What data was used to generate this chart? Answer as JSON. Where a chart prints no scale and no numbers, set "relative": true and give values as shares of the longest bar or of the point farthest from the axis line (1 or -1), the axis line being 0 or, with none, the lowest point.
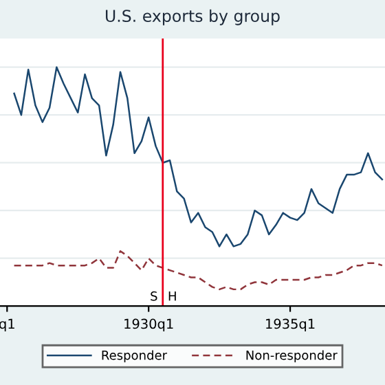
{
  "chart_data": {
    "type": "line",
    "title": "U.S. exports by group",
    "relative": true,
    "categories": [
      "q1",
      null,
      null,
      null,
      null,
      null,
      null,
      null,
      null,
      null,
      null,
      null,
      null,
      null,
      null,
      null,
      null,
      null,
      null,
      null,
      "1930q1",
      null,
      null,
      null,
      null,
      null,
      null,
      null,
      null,
      null,
      null,
      null,
      null,
      null,
      null,
      null,
      null,
      null,
      null,
      null,
      "1935q1",
      null,
      null,
      null,
      null,
      null,
      null,
      null,
      null,
      null,
      null,
      null,
      null,
      null
    ],
    "series": [
      {
        "name": "Responder",
        "color": "#1a476f",
        "line_style": "solid",
        "values": [
          null,
          0.89,
          0.8,
          0.99,
          0.84,
          0.77,
          0.83,
          1.0,
          0.93,
          0.87,
          0.81,
          0.97,
          0.87,
          0.84,
          0.63,
          0.76,
          0.98,
          0.87,
          0.64,
          0.69,
          0.79,
          0.67,
          0.6,
          0.61,
          0.48,
          0.45,
          0.35,
          0.39,
          0.33,
          0.31,
          0.25,
          0.3,
          0.25,
          0.26,
          0.3,
          0.4,
          0.38,
          0.3,
          0.34,
          0.39,
          0.37,
          0.36,
          0.39,
          0.49,
          0.43,
          0.41,
          0.39,
          0.49,
          0.55,
          0.55,
          0.56,
          0.64,
          0.56,
          0.53
        ]
      },
      {
        "name": "Non-responder",
        "color": "#90353b",
        "line_style": "dashed",
        "values": [
          null,
          0.17,
          0.17,
          0.17,
          0.17,
          0.17,
          0.18,
          0.17,
          0.17,
          0.17,
          0.17,
          0.17,
          0.18,
          0.2,
          0.16,
          0.16,
          0.23,
          0.21,
          0.18,
          0.15,
          0.2,
          0.17,
          0.16,
          0.15,
          0.14,
          0.13,
          0.12,
          0.12,
          0.1,
          0.08,
          0.07,
          0.08,
          0.07,
          0.07,
          0.09,
          0.1,
          0.1,
          0.09,
          0.11,
          0.11,
          0.11,
          0.11,
          0.11,
          0.12,
          0.12,
          0.13,
          0.13,
          0.14,
          0.15,
          0.17,
          0.17,
          0.18,
          0.18,
          0.17
        ]
      }
    ],
    "annotations": [
      "S",
      "H"
    ],
    "grid": "y",
    "legend": "bottom",
    "marker": "none"
  }
}
